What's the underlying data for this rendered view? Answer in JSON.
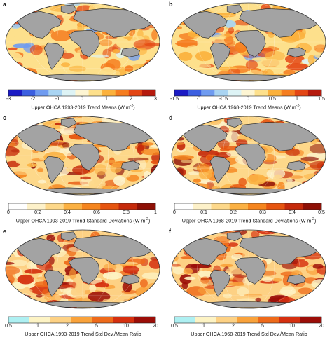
{
  "panels": [
    {
      "letter": "a",
      "colorbar": {
        "kind": "diverging",
        "ticks": [
          "-3",
          "-2",
          "-1",
          "0",
          "1",
          "2",
          "3"
        ],
        "title_main": "Upper OHCA 1993-2019 Trend Means (W m",
        "title_sup": "-2",
        "title_end": ")"
      }
    },
    {
      "letter": "b",
      "colorbar": {
        "kind": "diverging",
        "ticks": [
          "-1.5",
          "-1",
          "-0.5",
          "0",
          "0.5",
          "1",
          "1.5"
        ],
        "title_main": "Upper OHCA 1968-2019 Trend Means (W m",
        "title_sup": "-2",
        "title_end": ")"
      }
    },
    {
      "letter": "c",
      "colorbar": {
        "kind": "sequential",
        "ticks": [
          "0",
          "0.2",
          "0.4",
          "0.6",
          "0.8",
          "1"
        ],
        "title_main": "Upper OHCA 1993-2019 Trend Standard Deviations (W m",
        "title_sup": "-2",
        "title_end": ")"
      }
    },
    {
      "letter": "d",
      "colorbar": {
        "kind": "sequential",
        "ticks": [
          "0",
          "0.1",
          "0.2",
          "0.3",
          "0.4",
          "0.5"
        ],
        "title_main": "Upper OHCA 1968-2019 Trend Standard Deviations (W m",
        "title_sup": "-2",
        "title_end": ")"
      }
    },
    {
      "letter": "e",
      "colorbar": {
        "kind": "ratio",
        "ticks": [
          "0.5",
          "1",
          "2",
          "5",
          "10",
          "20"
        ],
        "title_main": "Upper OHCA 1993-2019 Trend Std Dev./Mean Ratio",
        "title_sup": "",
        "title_end": ""
      }
    },
    {
      "letter": "f",
      "colorbar": {
        "kind": "ratio",
        "ticks": [
          "0.5",
          "1",
          "2",
          "5",
          "10",
          "20"
        ],
        "title_main": "Upper OHCA 1968-2019 Trend Std Dev./Mean Ratio",
        "title_sup": "",
        "title_end": ""
      }
    }
  ],
  "colors": {
    "land": "#a3a3a3",
    "coast": "#222222",
    "diverging": [
      "#1b1bc4",
      "#3c5fe0",
      "#6f9bf0",
      "#a9d4f2",
      "#ddf3f5",
      "#fdf5d3",
      "#fde08c",
      "#fbb13c",
      "#f57d1f",
      "#e34614",
      "#b51a0d"
    ],
    "sequential": [
      "#ffffff",
      "#fdf1c9",
      "#fdd88a",
      "#fbb143",
      "#f5851e",
      "#e65510",
      "#c52a0b",
      "#8e1006"
    ],
    "ratio": [
      "#aef0f2",
      "#fdf3c4",
      "#fdd184",
      "#f9a23b",
      "#ee6a1a",
      "#d5300f",
      "#9b0d07"
    ]
  }
}
